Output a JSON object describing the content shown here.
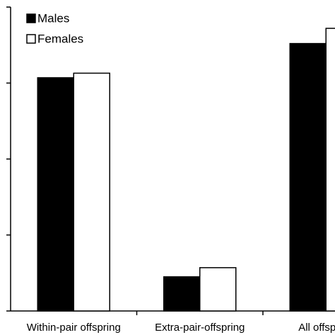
{
  "chart_data": {
    "type": "bar",
    "categories": [
      "Within-pair offspring",
      "Extra-pair-offspring",
      "All offspring"
    ],
    "series": [
      {
        "name": "Males",
        "color": "#000000",
        "values": [
          3.07,
          0.45,
          3.52
        ]
      },
      {
        "name": "Females",
        "color": "#ffffff",
        "values": [
          3.13,
          0.57,
          3.72
        ]
      }
    ],
    "ylim": [
      0,
      4
    ],
    "yticks": [
      0,
      1,
      2,
      3,
      4
    ],
    "legend": "top-left"
  }
}
